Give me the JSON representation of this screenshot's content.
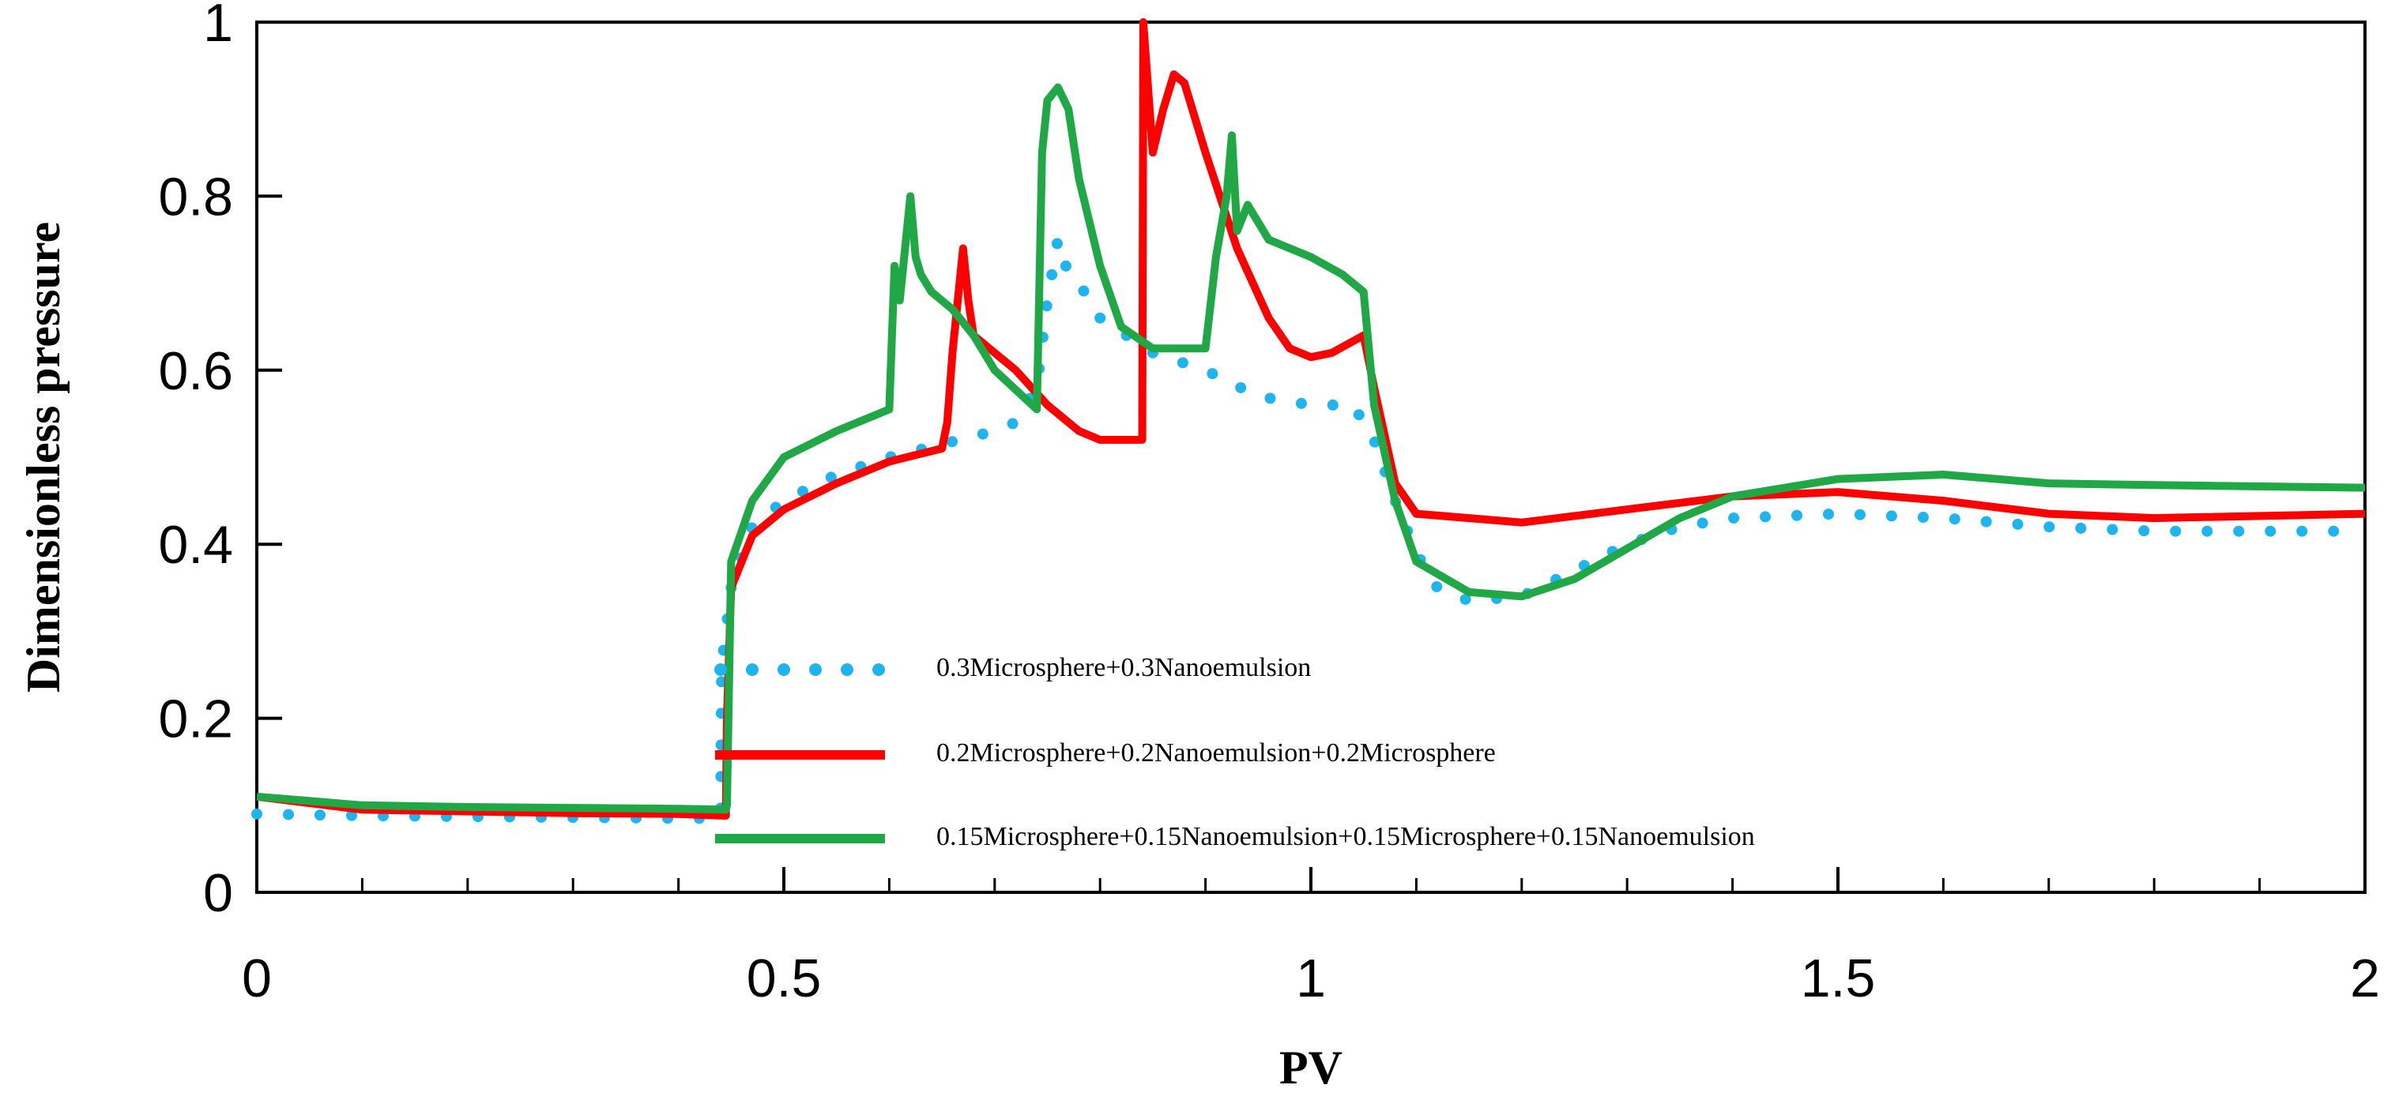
{
  "chart_data": {
    "type": "line",
    "title": "",
    "xlabel": "PV",
    "ylabel": "Dimensionless pressure",
    "xlim": [
      0,
      2
    ],
    "ylim": [
      0,
      1
    ],
    "x_ticks": [
      {
        "value": 0,
        "label": "0"
      },
      {
        "value": 0.5,
        "label": "0.5"
      },
      {
        "value": 1,
        "label": "1"
      },
      {
        "value": 1.5,
        "label": "1.5"
      },
      {
        "value": 2,
        "label": "2"
      }
    ],
    "x_minor_step": 0.1,
    "y_ticks": [
      {
        "value": 0,
        "label": "0"
      },
      {
        "value": 0.2,
        "label": "0.2"
      },
      {
        "value": 0.4,
        "label": "0.4"
      },
      {
        "value": 0.6,
        "label": "0.6"
      },
      {
        "value": 0.8,
        "label": "0.8"
      },
      {
        "value": 1,
        "label": "1"
      }
    ],
    "grid": false,
    "legend_position": "center",
    "series": [
      {
        "name": "0.3Microsphere+0.3Nanoemulsion",
        "color": "#1EB4F0",
        "style": "dotted",
        "points": [
          [
            0,
            0.09
          ],
          [
            0.1,
            0.088
          ],
          [
            0.2,
            0.087
          ],
          [
            0.3,
            0.086
          ],
          [
            0.4,
            0.085
          ],
          [
            0.44,
            0.085
          ],
          [
            0.441,
            0.26
          ],
          [
            0.45,
            0.35
          ],
          [
            0.47,
            0.42
          ],
          [
            0.5,
            0.45
          ],
          [
            0.55,
            0.48
          ],
          [
            0.6,
            0.5
          ],
          [
            0.65,
            0.515
          ],
          [
            0.7,
            0.53
          ],
          [
            0.72,
            0.54
          ],
          [
            0.74,
            0.58
          ],
          [
            0.75,
            0.68
          ],
          [
            0.76,
            0.75
          ],
          [
            0.77,
            0.71
          ],
          [
            0.78,
            0.7
          ],
          [
            0.8,
            0.66
          ],
          [
            0.85,
            0.62
          ],
          [
            0.9,
            0.6
          ],
          [
            0.95,
            0.57
          ],
          [
            1.0,
            0.56
          ],
          [
            1.04,
            0.56
          ],
          [
            1.06,
            0.52
          ],
          [
            1.08,
            0.45
          ],
          [
            1.1,
            0.39
          ],
          [
            1.12,
            0.35
          ],
          [
            1.15,
            0.335
          ],
          [
            1.2,
            0.34
          ],
          [
            1.25,
            0.37
          ],
          [
            1.3,
            0.4
          ],
          [
            1.35,
            0.42
          ],
          [
            1.4,
            0.43
          ],
          [
            1.5,
            0.435
          ],
          [
            1.6,
            0.43
          ],
          [
            1.7,
            0.42
          ],
          [
            1.8,
            0.415
          ],
          [
            2.0,
            0.415
          ]
        ]
      },
      {
        "name": "0.2Microsphere+0.2Nanoemulsion+0.2Microsphere",
        "color": "#FF0000",
        "style": "solid",
        "points": [
          [
            0,
            0.11
          ],
          [
            0.1,
            0.095
          ],
          [
            0.2,
            0.093
          ],
          [
            0.3,
            0.091
          ],
          [
            0.4,
            0.09
          ],
          [
            0.445,
            0.088
          ],
          [
            0.446,
            0.2
          ],
          [
            0.45,
            0.35
          ],
          [
            0.47,
            0.41
          ],
          [
            0.5,
            0.44
          ],
          [
            0.55,
            0.47
          ],
          [
            0.6,
            0.495
          ],
          [
            0.65,
            0.51
          ],
          [
            0.655,
            0.54
          ],
          [
            0.66,
            0.62
          ],
          [
            0.67,
            0.74
          ],
          [
            0.675,
            0.68
          ],
          [
            0.68,
            0.64
          ],
          [
            0.7,
            0.62
          ],
          [
            0.72,
            0.6
          ],
          [
            0.75,
            0.56
          ],
          [
            0.78,
            0.53
          ],
          [
            0.8,
            0.52
          ],
          [
            0.84,
            0.52
          ],
          [
            0.841,
            1.0
          ],
          [
            0.85,
            0.85
          ],
          [
            0.86,
            0.9
          ],
          [
            0.87,
            0.94
          ],
          [
            0.88,
            0.93
          ],
          [
            0.9,
            0.85
          ],
          [
            0.93,
            0.74
          ],
          [
            0.96,
            0.66
          ],
          [
            0.98,
            0.625
          ],
          [
            1.0,
            0.615
          ],
          [
            1.02,
            0.62
          ],
          [
            1.05,
            0.64
          ],
          [
            1.06,
            0.58
          ],
          [
            1.08,
            0.47
          ],
          [
            1.1,
            0.435
          ],
          [
            1.15,
            0.43
          ],
          [
            1.2,
            0.425
          ],
          [
            1.3,
            0.44
          ],
          [
            1.4,
            0.455
          ],
          [
            1.5,
            0.46
          ],
          [
            1.6,
            0.45
          ],
          [
            1.7,
            0.435
          ],
          [
            1.8,
            0.43
          ],
          [
            2.0,
            0.435
          ]
        ]
      },
      {
        "name": "0.15Microsphere+0.15Nanoemulsion+0.15Microsphere+0.15Nanoemulsion",
        "color": "#1FA845",
        "style": "solid",
        "points": [
          [
            0,
            0.11
          ],
          [
            0.1,
            0.1
          ],
          [
            0.2,
            0.098
          ],
          [
            0.3,
            0.097
          ],
          [
            0.4,
            0.096
          ],
          [
            0.445,
            0.095
          ],
          [
            0.446,
            0.1
          ],
          [
            0.45,
            0.38
          ],
          [
            0.47,
            0.45
          ],
          [
            0.5,
            0.5
          ],
          [
            0.55,
            0.53
          ],
          [
            0.6,
            0.555
          ],
          [
            0.605,
            0.72
          ],
          [
            0.61,
            0.68
          ],
          [
            0.62,
            0.8
          ],
          [
            0.625,
            0.73
          ],
          [
            0.63,
            0.71
          ],
          [
            0.64,
            0.69
          ],
          [
            0.66,
            0.67
          ],
          [
            0.68,
            0.64
          ],
          [
            0.7,
            0.6
          ],
          [
            0.74,
            0.555
          ],
          [
            0.745,
            0.85
          ],
          [
            0.75,
            0.91
          ],
          [
            0.76,
            0.925
          ],
          [
            0.77,
            0.9
          ],
          [
            0.78,
            0.82
          ],
          [
            0.8,
            0.72
          ],
          [
            0.82,
            0.65
          ],
          [
            0.85,
            0.625
          ],
          [
            0.9,
            0.625
          ],
          [
            0.91,
            0.73
          ],
          [
            0.92,
            0.8
          ],
          [
            0.925,
            0.87
          ],
          [
            0.93,
            0.76
          ],
          [
            0.94,
            0.79
          ],
          [
            0.96,
            0.75
          ],
          [
            1.0,
            0.73
          ],
          [
            1.03,
            0.71
          ],
          [
            1.05,
            0.69
          ],
          [
            1.06,
            0.56
          ],
          [
            1.08,
            0.45
          ],
          [
            1.1,
            0.38
          ],
          [
            1.15,
            0.345
          ],
          [
            1.2,
            0.34
          ],
          [
            1.25,
            0.36
          ],
          [
            1.3,
            0.395
          ],
          [
            1.35,
            0.43
          ],
          [
            1.4,
            0.455
          ],
          [
            1.5,
            0.475
          ],
          [
            1.6,
            0.48
          ],
          [
            1.7,
            0.47
          ],
          [
            1.8,
            0.468
          ],
          [
            2.0,
            0.465
          ]
        ]
      }
    ]
  }
}
